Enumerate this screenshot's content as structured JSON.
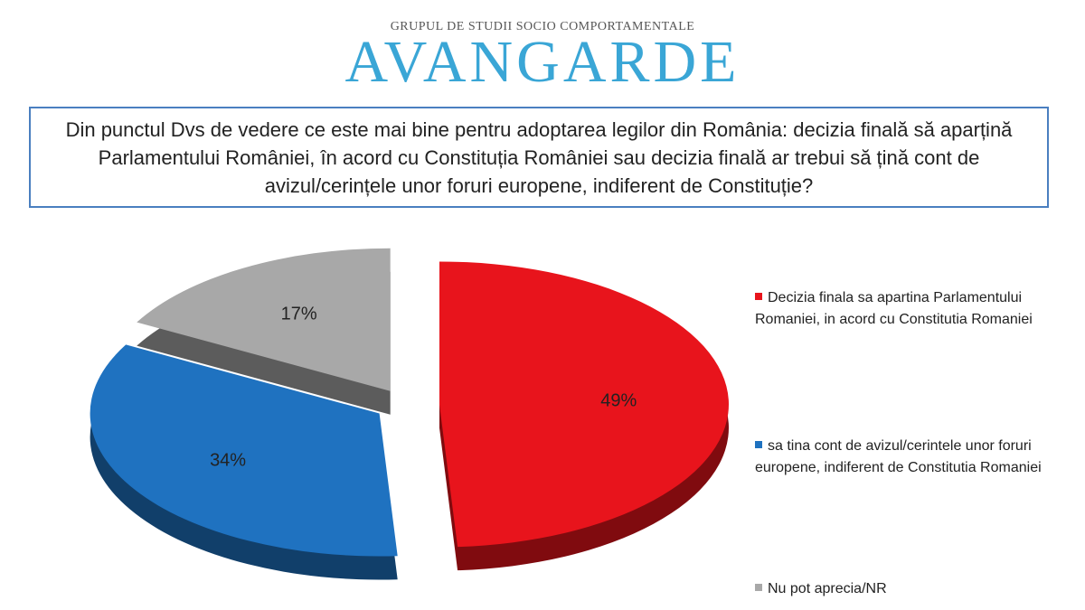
{
  "header": {
    "tagline": "GRUPUL DE STUDII SOCIO COMPORTAMENTALE",
    "brand": "AVANGARDE"
  },
  "chart_data": {
    "type": "pie",
    "title": "Din punctul Dvs de vedere ce este mai bine pentru adoptarea legilor din România: decizia finală să aparțină Parlamentului României, în acord cu Constituția României sau decizia finală ar trebui să țină cont de avizul/cerințele unor foruri europene, indiferent de Constituție?",
    "categories": [
      "Decizia finala sa apartina Parlamentului Romaniei, in acord cu Constitutia Romaniei",
      "sa tina cont de avizul/cerintele unor foruri europene, indiferent de Constitutia Romaniei",
      "Nu pot aprecia/NR"
    ],
    "values": [
      49,
      34,
      17
    ],
    "value_labels": [
      "49%",
      "34%",
      "17%"
    ],
    "colors": [
      "#e8141c",
      "#1f72c0",
      "#a8a8a8"
    ]
  }
}
